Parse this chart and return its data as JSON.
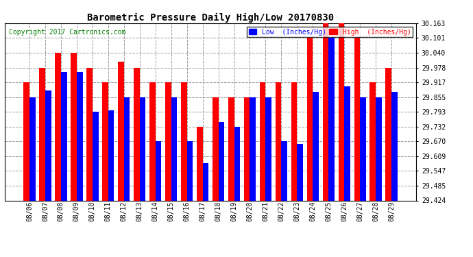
{
  "title": "Barometric Pressure Daily High/Low 20170830",
  "copyright": "Copyright 2017 Cartronics.com",
  "legend_low": "Low  (Inches/Hg)",
  "legend_high": "High  (Inches/Hg)",
  "dates": [
    "08/06",
    "08/07",
    "08/08",
    "08/09",
    "08/10",
    "08/11",
    "08/12",
    "08/13",
    "08/14",
    "08/15",
    "08/16",
    "08/17",
    "08/18",
    "08/19",
    "08/20",
    "08/21",
    "08/22",
    "08/23",
    "08/24",
    "08/25",
    "08/26",
    "08/27",
    "08/28",
    "08/29"
  ],
  "low": [
    29.855,
    29.882,
    29.96,
    29.96,
    29.793,
    29.8,
    29.855,
    29.855,
    29.67,
    29.855,
    29.67,
    29.58,
    29.75,
    29.732,
    29.855,
    29.855,
    29.67,
    29.66,
    29.878,
    30.101,
    29.9,
    29.855,
    29.855,
    29.878
  ],
  "high": [
    29.917,
    29.978,
    30.04,
    30.04,
    29.978,
    29.917,
    30.001,
    29.978,
    29.917,
    29.917,
    29.917,
    29.732,
    29.855,
    29.855,
    29.855,
    29.917,
    29.917,
    29.917,
    30.101,
    30.163,
    30.163,
    30.101,
    29.917,
    29.978
  ],
  "ylim_min": 29.424,
  "ylim_max": 30.163,
  "yticks": [
    29.424,
    29.485,
    29.547,
    29.609,
    29.67,
    29.732,
    29.793,
    29.855,
    29.917,
    29.978,
    30.04,
    30.101,
    30.163
  ],
  "low_color": "#0000ff",
  "high_color": "#ff0000",
  "bg_color": "#ffffff",
  "grid_color": "#999999",
  "bar_width": 0.38,
  "figwidth": 6.9,
  "figheight": 3.75,
  "dpi": 100
}
